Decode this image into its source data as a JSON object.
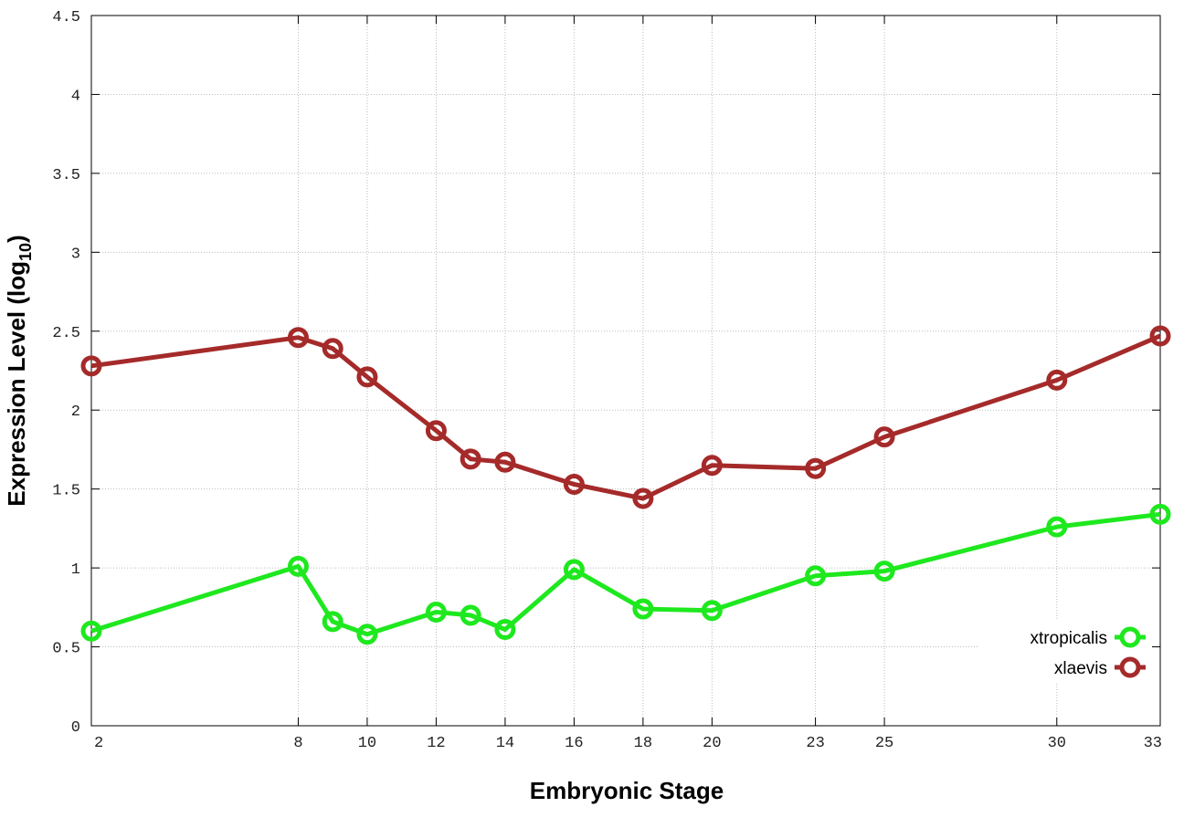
{
  "chart_data": {
    "type": "line",
    "title": "",
    "xlabel": "Embryonic Stage",
    "ylabel_main": "Expression Level (log",
    "ylabel_sub": "10",
    "ylabel_close": ")",
    "x": [
      2,
      8,
      9,
      10,
      12,
      13,
      14,
      16,
      18,
      20,
      23,
      25,
      30,
      33
    ],
    "xticks": [
      2,
      8,
      10,
      12,
      14,
      16,
      18,
      20,
      23,
      25,
      30,
      33
    ],
    "xlim": [
      2,
      33
    ],
    "ylim": [
      0,
      4.5
    ],
    "yticks": [
      "0",
      "0.5",
      "1",
      "1.5",
      "2",
      "2.5",
      "3",
      "3.5",
      "4",
      "4.5"
    ],
    "grid": true,
    "legend_position": "bottom-right",
    "series": [
      {
        "name": "xtropicalis",
        "color": "#1ee81e",
        "values": [
          0.6,
          1.01,
          0.66,
          0.58,
          0.72,
          0.7,
          0.61,
          0.99,
          0.74,
          0.73,
          0.95,
          0.98,
          1.26,
          1.34
        ]
      },
      {
        "name": "xlaevis",
        "color": "#a52a2a",
        "values": [
          2.28,
          2.46,
          2.39,
          2.21,
          1.87,
          1.69,
          1.67,
          1.53,
          1.44,
          1.65,
          1.63,
          1.83,
          2.19,
          2.47
        ]
      }
    ]
  }
}
